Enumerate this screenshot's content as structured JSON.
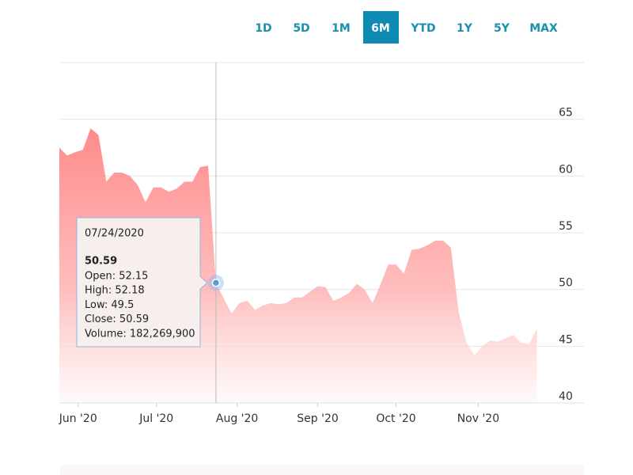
{
  "chart_data": {
    "type": "area",
    "ranges": [
      "1D",
      "5D",
      "1M",
      "6M",
      "YTD",
      "1Y",
      "5Y",
      "MAX"
    ],
    "active_range": "6M",
    "series": [
      {
        "color": "#ff8a8a",
        "values": [
          62.5,
          61.8,
          62.1,
          62.3,
          64.2,
          63.6,
          59.5,
          60.3,
          60.3,
          60.0,
          59.2,
          57.7,
          59.0,
          59.0,
          58.6,
          58.9,
          59.5,
          59.5,
          60.8,
          60.9,
          50.59,
          49.2,
          47.9,
          48.8,
          49.0,
          48.2,
          48.6,
          48.8,
          48.7,
          48.8,
          49.3,
          49.3,
          49.8,
          50.3,
          50.2,
          49.0,
          49.3,
          49.7,
          50.5,
          50.0,
          48.8,
          50.4,
          52.2,
          52.2,
          51.4,
          53.5,
          53.6,
          53.9,
          54.3,
          54.3,
          53.7,
          48.0,
          45.3,
          44.2,
          45.0,
          45.5,
          45.4,
          45.7,
          46.0,
          45.3,
          45.2,
          46.5
        ]
      }
    ],
    "xlim": [
      0,
      67
    ],
    "xticks": [
      {
        "value": 2.4,
        "label": "Jun '20"
      },
      {
        "value": 12.4,
        "label": "Jul '20"
      },
      {
        "value": 22.7,
        "label": "Aug '20"
      },
      {
        "value": 33,
        "label": "Sep '20"
      },
      {
        "value": 43,
        "label": "Oct '20"
      },
      {
        "value": 53.5,
        "label": "Nov '20"
      }
    ],
    "ylim": [
      40,
      70
    ],
    "yticks": [
      40,
      45,
      50,
      55,
      60,
      65
    ],
    "grid": true,
    "tooltip": {
      "date": "07/24/2020",
      "value": 50.59,
      "lines": [
        "Open: 52.15",
        "High: 52.18",
        "Low: 49.5",
        "Close: 50.59",
        "Volume: 182,269,900"
      ]
    }
  }
}
